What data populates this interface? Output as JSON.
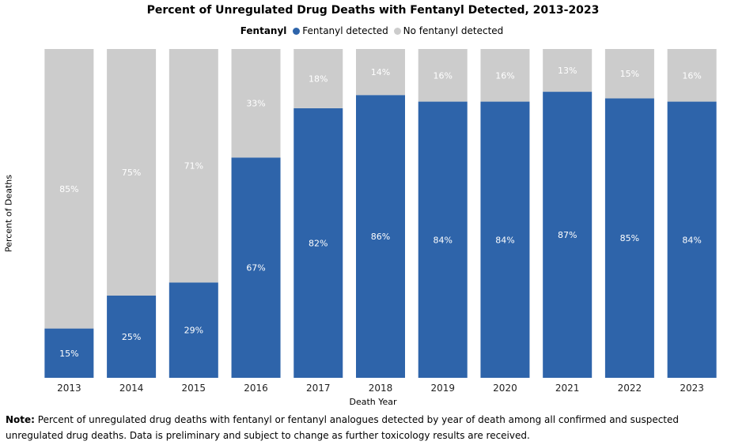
{
  "chart_data": {
    "type": "bar",
    "stacked": true,
    "title": "Percent of Unregulated Drug Deaths with Fentanyl Detected, 2013-2023",
    "legend_title": "Fentanyl",
    "legend_position": "top-center",
    "xlabel": "Death Year",
    "ylabel": "Percent of Deaths",
    "ylim": [
      0,
      100
    ],
    "grid": false,
    "categories": [
      "2013",
      "2014",
      "2015",
      "2016",
      "2017",
      "2018",
      "2019",
      "2020",
      "2021",
      "2022",
      "2023"
    ],
    "series": [
      {
        "name": "Fentanyl detected",
        "color": "#2e64aa",
        "values": [
          15,
          25,
          29,
          67,
          82,
          86,
          84,
          84,
          87,
          85,
          84
        ]
      },
      {
        "name": "No fentanyl detected",
        "color": "#cccccc",
        "values": [
          85,
          75,
          71,
          33,
          18,
          14,
          16,
          16,
          13,
          15,
          16
        ]
      }
    ]
  },
  "note": {
    "label": "Note:",
    "text": "Percent of unregulated drug deaths with fentanyl or fentanyl analogues detected by year of death among all confirmed and suspected unregulated drug deaths. Data is preliminary and subject to change as further toxicology results are received."
  }
}
